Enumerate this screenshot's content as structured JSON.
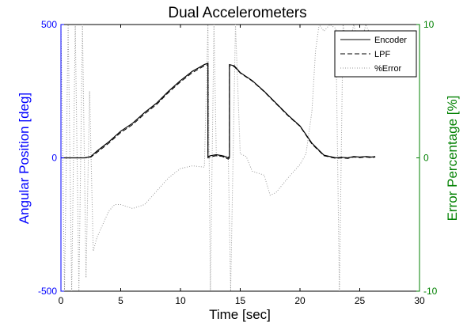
{
  "chart_data": {
    "type": "line",
    "title": "Dual Accelerometers",
    "xlabel": "Time [sec]",
    "ylabel": "Angular Position [deg]",
    "ylabel_right": "Error Percentage [%]",
    "xlim": [
      0,
      30
    ],
    "ylim": [
      -500,
      500
    ],
    "ylim_right": [
      -10,
      10
    ],
    "xticks": [
      "0",
      "5",
      "10",
      "15",
      "20",
      "25",
      "30"
    ],
    "yticks": [
      "-500",
      "0",
      "500"
    ],
    "yticks_right": [
      "-10",
      "0",
      "10"
    ],
    "grid": false,
    "legend_position": "top-right",
    "colors": {
      "axis": "#000000",
      "left_axis": "#0000ff",
      "right_axis": "#008000",
      "encoder": "#000000",
      "lpf": "#000000",
      "error": "#999999"
    },
    "series": [
      {
        "name": "Encoder",
        "axis": "left",
        "style": "solid",
        "x": [
          0,
          1,
          2,
          2.5,
          3,
          4,
          5,
          6,
          7,
          8,
          9,
          10,
          11,
          12,
          12.3,
          12.3,
          12.5,
          13,
          13.5,
          14,
          14.1,
          14.1,
          14.5,
          15,
          16,
          17,
          18,
          19,
          20,
          21,
          22,
          23,
          23.5,
          24,
          24.5,
          25,
          25.5,
          26,
          26.3
        ],
        "y": [
          0,
          0,
          0,
          5,
          25,
          60,
          100,
          130,
          170,
          205,
          250,
          290,
          325,
          350,
          355,
          5,
          8,
          12,
          8,
          0,
          5,
          350,
          345,
          320,
          290,
          250,
          205,
          160,
          120,
          55,
          10,
          0,
          2,
          0,
          5,
          3,
          5,
          3,
          5
        ]
      },
      {
        "name": "LPF",
        "axis": "left",
        "style": "dashed",
        "x": [
          0,
          1,
          2,
          2.5,
          3,
          4,
          5,
          6,
          7,
          8,
          9,
          10,
          11,
          12,
          12.3,
          12.3,
          12.5,
          13,
          13.5,
          14,
          14.1,
          14.1,
          14.5,
          15,
          16,
          17,
          18,
          19,
          20,
          21,
          22,
          23,
          23.5,
          24,
          24.5,
          25,
          25.5,
          26,
          26.3
        ],
        "y": [
          0,
          0,
          0,
          3,
          20,
          55,
          95,
          125,
          165,
          200,
          245,
          285,
          320,
          345,
          350,
          0,
          4,
          8,
          5,
          -5,
          0,
          345,
          342,
          318,
          288,
          248,
          203,
          158,
          118,
          52,
          8,
          -2,
          0,
          -2,
          3,
          1,
          3,
          1,
          3
        ]
      },
      {
        "name": "%Error",
        "axis": "right",
        "style": "dotted",
        "x": [
          0,
          0.3,
          0.6,
          0.9,
          1.2,
          1.5,
          1.8,
          2.1,
          2.4,
          2.7,
          3,
          3.5,
          4,
          4.5,
          5,
          6,
          7,
          8,
          9,
          10,
          11,
          12,
          12.3,
          12.5,
          12.8,
          13,
          13.5,
          14,
          14.2,
          14.6,
          15,
          15.5,
          16,
          17,
          17.5,
          18,
          19,
          20,
          20.5,
          21,
          21.3,
          21.6,
          22,
          22.5,
          23,
          23.3,
          23.6,
          24,
          24.5,
          25,
          25.5,
          26
        ],
        "y": [
          10,
          -10,
          10,
          -10,
          10,
          -10,
          10,
          -9,
          5,
          -7,
          -6,
          -5,
          -4,
          -3.5,
          -3.5,
          -3.8,
          -3.5,
          -2.5,
          -1.5,
          -0.8,
          -0.6,
          -0.7,
          10,
          -10,
          10,
          0.1,
          0.2,
          0.1,
          -10,
          10,
          0.3,
          0.1,
          -1,
          -1.3,
          -2.8,
          -2.6,
          -1.5,
          -0.5,
          0.3,
          3.5,
          8,
          10,
          9.5,
          10,
          9.7,
          -10,
          10,
          8,
          10,
          8,
          10,
          9
        ]
      }
    ]
  }
}
